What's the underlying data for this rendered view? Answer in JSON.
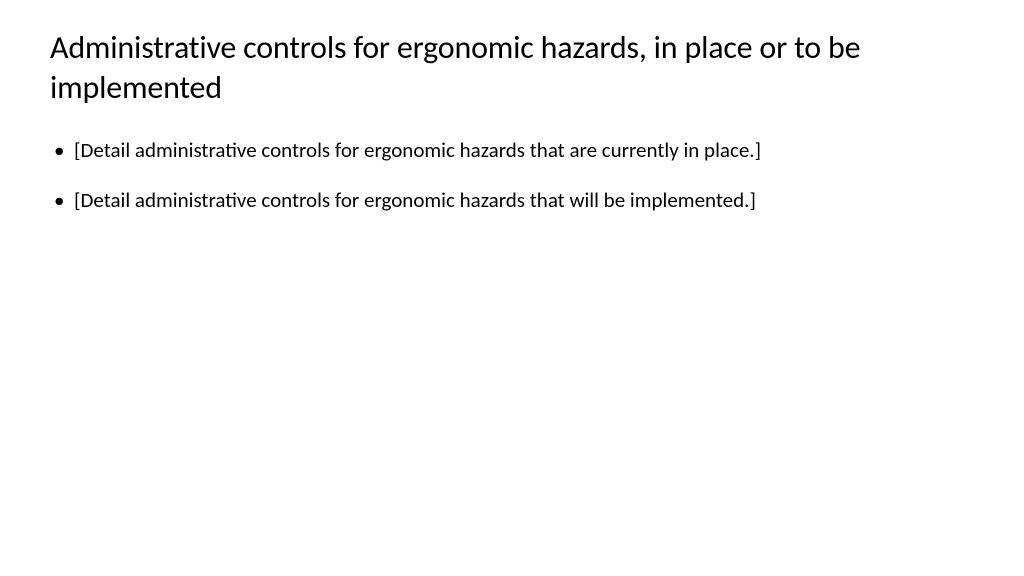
{
  "slide": {
    "title": "Administrative controls for ergonomic hazards, in place or to be implemented",
    "bullets": [
      "[Detail administrative controls for ergonomic hazards that are currently in place.]",
      "[Detail administrative controls for ergonomic hazards that will be implemented.]"
    ],
    "colors": {
      "background": "#ffffff",
      "text": "#000000"
    },
    "typography": {
      "title_fontsize": 32,
      "title_weight": 400,
      "body_fontsize": 21,
      "body_weight": 400,
      "font_family": "Calibri"
    }
  }
}
